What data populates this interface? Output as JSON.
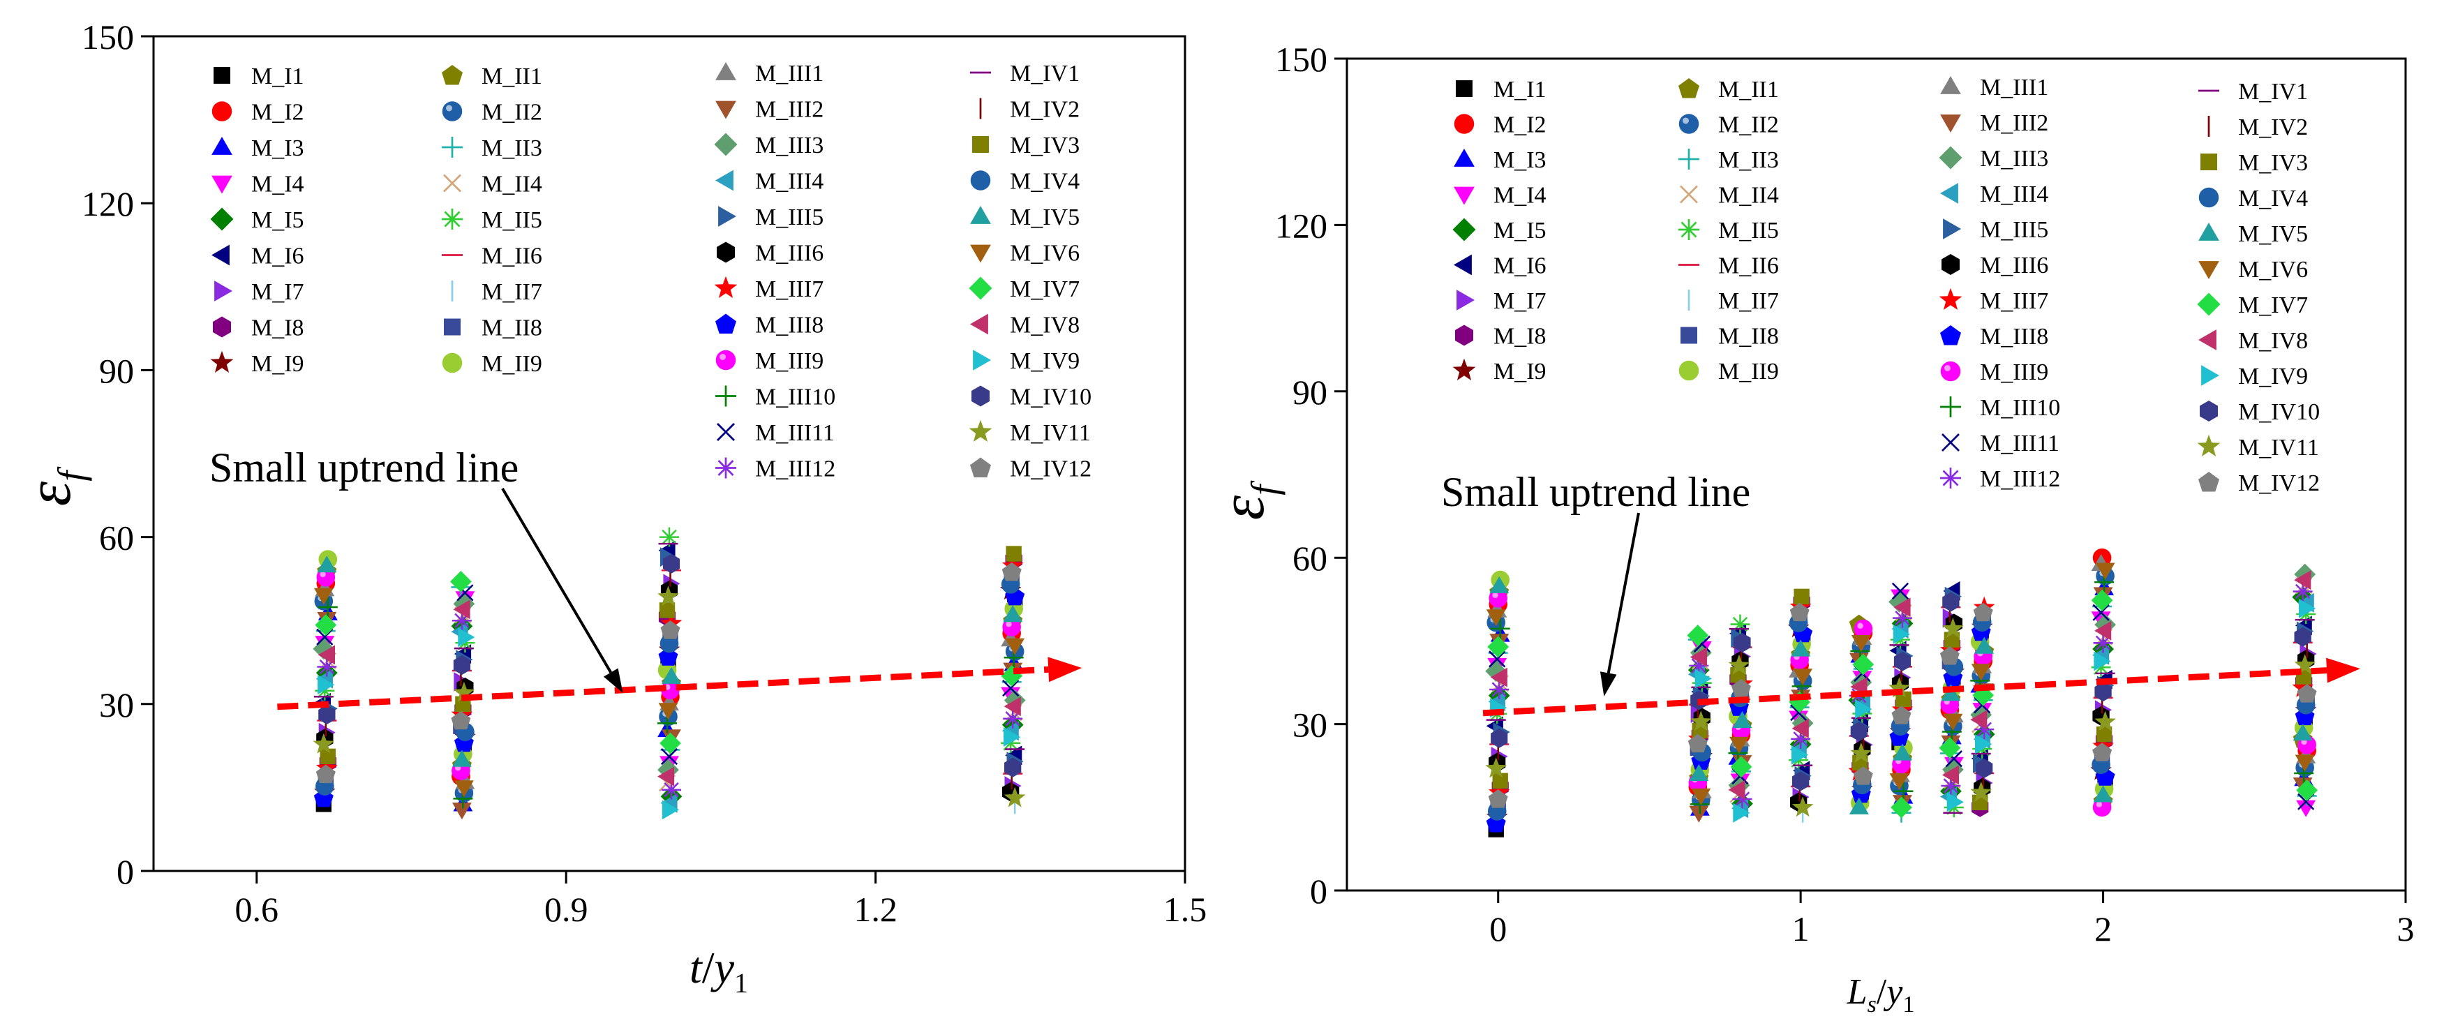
{
  "chart_data": [
    {
      "type": "scatter",
      "panel": "left",
      "xlabel_main": "t",
      "xlabel_sep": "/",
      "xlabel_var": "y",
      "xlabel_sub": "1",
      "ylabel_main": "ε",
      "ylabel_sub": "f",
      "xlim": [
        0.5,
        1.5
      ],
      "ylim": [
        0,
        150
      ],
      "xticks": [
        0.6,
        0.9,
        1.2,
        1.5
      ],
      "xtick_labels": [
        "0.6",
        "0.9",
        "1.2",
        "1.5"
      ],
      "yticks": [
        0,
        30,
        60,
        90,
        120,
        150
      ],
      "ytick_labels": [
        "0",
        "30",
        "60",
        "90",
        "120",
        "150"
      ],
      "columns": [
        {
          "x": 0.667,
          "ymin": 12,
          "ymax": 56
        },
        {
          "x": 0.8,
          "ymin": 11,
          "ymax": 52
        },
        {
          "x": 1.0,
          "ymin": 11,
          "ymax": 60
        },
        {
          "x": 1.333,
          "ymin": 12,
          "ymax": 57
        }
      ],
      "trend_line": {
        "x": [
          0.62,
          1.4
        ],
        "y": [
          29.5,
          36.5
        ]
      },
      "annotation": {
        "text": "Small uptrend line",
        "arrow_to": {
          "x": 0.955,
          "y": 32
        }
      },
      "legend": [
        "M_I1",
        "M_I2",
        "M_I3",
        "M_I4",
        "M_I5",
        "M_I6",
        "M_I7",
        "M_I8",
        "M_I9",
        "M_II1",
        "M_II2",
        "M_II3",
        "M_II4",
        "M_II5",
        "M_II6",
        "M_II7",
        "M_II8",
        "M_II9",
        "M_III1",
        "M_III2",
        "M_III3",
        "M_III4",
        "M_III5",
        "M_III6",
        "M_III7",
        "M_III8",
        "M_III9",
        "M_III10",
        "M_III11",
        "M_III12",
        "M_IV1",
        "M_IV2",
        "M_IV3",
        "M_IV4",
        "M_IV5",
        "M_IV6",
        "M_IV7",
        "M_IV8",
        "M_IV9",
        "M_IV10",
        "M_IV11",
        "M_IV12"
      ]
    },
    {
      "type": "scatter",
      "panel": "right",
      "xlabel_main": "L",
      "xlabel_sub": "s",
      "xlabel_sep": "/",
      "xlabel_var": "y",
      "xlabel_sub2": "1",
      "ylabel_main": "ε",
      "ylabel_sub": "f",
      "xlim": [
        -0.5,
        3
      ],
      "ylim": [
        0,
        150
      ],
      "xticks": [
        0,
        1,
        2,
        3
      ],
      "xtick_labels": [
        "0",
        "1",
        "2",
        "3"
      ],
      "yticks": [
        0,
        30,
        60,
        90,
        120,
        150
      ],
      "ytick_labels": [
        "0",
        "30",
        "60",
        "90",
        "120",
        "150"
      ],
      "columns": [
        {
          "x": 0,
          "ymin": 11,
          "ymax": 56
        },
        {
          "x": 0.667,
          "ymin": 14,
          "ymax": 46
        },
        {
          "x": 0.8,
          "ymin": 14,
          "ymax": 48
        },
        {
          "x": 1.0,
          "ymin": 14,
          "ymax": 53
        },
        {
          "x": 1.2,
          "ymin": 15,
          "ymax": 48
        },
        {
          "x": 1.333,
          "ymin": 14,
          "ymax": 54
        },
        {
          "x": 1.5,
          "ymin": 14,
          "ymax": 54
        },
        {
          "x": 1.6,
          "ymin": 15,
          "ymax": 51
        },
        {
          "x": 2.0,
          "ymin": 15,
          "ymax": 60
        },
        {
          "x": 2.667,
          "ymin": 15,
          "ymax": 57
        }
      ],
      "trend_line": {
        "x": [
          -0.05,
          2.85
        ],
        "y": [
          32,
          40
        ]
      },
      "annotation": {
        "text": "Small uptrend line",
        "arrow_to": {
          "x": 0.35,
          "y": 35
        }
      },
      "legend": [
        "M_I1",
        "M_I2",
        "M_I3",
        "M_I4",
        "M_I5",
        "M_I6",
        "M_I7",
        "M_I8",
        "M_I9",
        "M_II1",
        "M_II2",
        "M_II3",
        "M_II4",
        "M_II5",
        "M_II6",
        "M_II7",
        "M_II8",
        "M_II9",
        "M_III1",
        "M_III2",
        "M_III3",
        "M_III4",
        "M_III5",
        "M_III6",
        "M_III7",
        "M_III8",
        "M_III9",
        "M_III10",
        "M_III11",
        "M_III12",
        "M_IV1",
        "M_IV2",
        "M_IV3",
        "M_IV4",
        "M_IV5",
        "M_IV6",
        "M_IV7",
        "M_IV8",
        "M_IV9",
        "M_IV10",
        "M_IV11",
        "M_IV12"
      ]
    }
  ],
  "series_styles": {
    "M_I1": {
      "shape": "square",
      "color": "#000000"
    },
    "M_I2": {
      "shape": "circle",
      "color": "#ff0000"
    },
    "M_I3": {
      "shape": "tri-up",
      "color": "#0000ff"
    },
    "M_I4": {
      "shape": "tri-down",
      "color": "#ff00ff"
    },
    "M_I5": {
      "shape": "diamond",
      "color": "#008000"
    },
    "M_I6": {
      "shape": "tri-left",
      "color": "#000080"
    },
    "M_I7": {
      "shape": "tri-right",
      "color": "#8a2be2"
    },
    "M_I8": {
      "shape": "hexagon",
      "color": "#800080"
    },
    "M_I9": {
      "shape": "star",
      "color": "#800000"
    },
    "M_II1": {
      "shape": "pentagon",
      "color": "#808000"
    },
    "M_II2": {
      "shape": "sphere",
      "color": "#1f5fa8"
    },
    "M_II3": {
      "shape": "plus",
      "color": "#20b2aa"
    },
    "M_II4": {
      "shape": "cross",
      "color": "#d2a679"
    },
    "M_II5": {
      "shape": "asterisk",
      "color": "#32cd32"
    },
    "M_II6": {
      "shape": "hline",
      "color": "#dc143c"
    },
    "M_II7": {
      "shape": "vline",
      "color": "#87ceeb"
    },
    "M_II8": {
      "shape": "square",
      "color": "#3a4a9a"
    },
    "M_II9": {
      "shape": "circle",
      "color": "#9acd32"
    },
    "M_III1": {
      "shape": "tri-up",
      "color": "#808080"
    },
    "M_III2": {
      "shape": "tri-down",
      "color": "#a0522d"
    },
    "M_III3": {
      "shape": "diamond",
      "color": "#5f9f6f"
    },
    "M_III4": {
      "shape": "tri-left",
      "color": "#2ba0c0"
    },
    "M_III5": {
      "shape": "tri-right",
      "color": "#2c5fa0"
    },
    "M_III6": {
      "shape": "hexagon",
      "color": "#000000"
    },
    "M_III7": {
      "shape": "star",
      "color": "#ff0000"
    },
    "M_III8": {
      "shape": "pentagon",
      "color": "#0000ff"
    },
    "M_III9": {
      "shape": "sphere",
      "color": "#ff00ff"
    },
    "M_III10": {
      "shape": "plus",
      "color": "#008000"
    },
    "M_III11": {
      "shape": "cross",
      "color": "#000080"
    },
    "M_III12": {
      "shape": "asterisk",
      "color": "#8a2be2"
    },
    "M_IV1": {
      "shape": "hline",
      "color": "#800080"
    },
    "M_IV2": {
      "shape": "vline",
      "color": "#800000"
    },
    "M_IV3": {
      "shape": "square",
      "color": "#808000"
    },
    "M_IV4": {
      "shape": "circle",
      "color": "#1f5fa8"
    },
    "M_IV5": {
      "shape": "tri-up",
      "color": "#20a0a0"
    },
    "M_IV6": {
      "shape": "tri-down",
      "color": "#a06010"
    },
    "M_IV7": {
      "shape": "diamond",
      "color": "#22dd44"
    },
    "M_IV8": {
      "shape": "tri-left",
      "color": "#c0306a"
    },
    "M_IV9": {
      "shape": "tri-right",
      "color": "#20c0d0"
    },
    "M_IV10": {
      "shape": "hexagon",
      "color": "#3a3a8a"
    },
    "M_IV11": {
      "shape": "star",
      "color": "#8a9a20"
    },
    "M_IV12": {
      "shape": "pentagon",
      "color": "#808080"
    }
  },
  "colors": {
    "trend": "#ff0000",
    "axis": "#000000",
    "arrow": "#000000"
  }
}
